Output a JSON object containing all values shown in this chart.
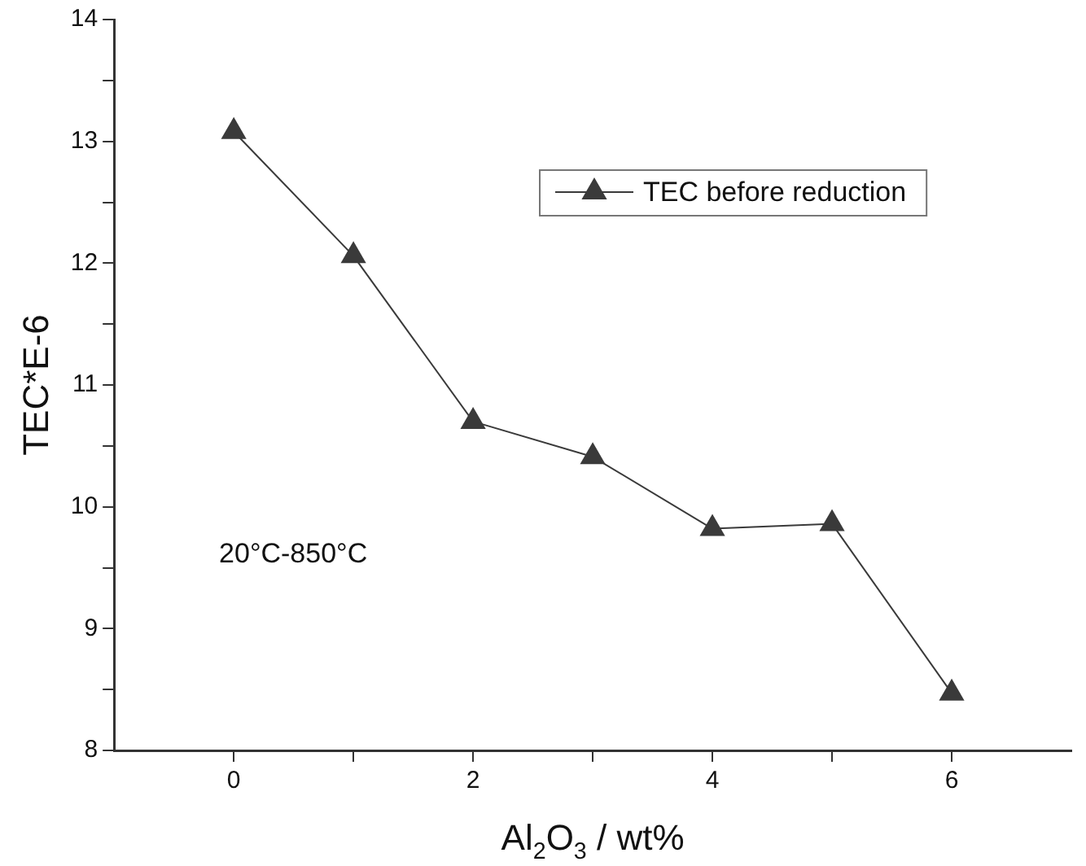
{
  "chart_data": {
    "type": "line",
    "xlabel": "Al$_{2}$O$_{3}$ / wt%",
    "ylabel": "TEC*E-6",
    "x": [
      0,
      1,
      2,
      3,
      4,
      5,
      6
    ],
    "series": [
      {
        "name": "TEC before reduction",
        "color": "#3a3a3a",
        "values": [
          13.08,
          12.06,
          10.7,
          10.41,
          9.82,
          9.86,
          8.47
        ]
      }
    ],
    "xlim": [
      -1,
      7
    ],
    "xticks": [
      0,
      {
        "value": 1,
        "label": null
      },
      2,
      {
        "value": 3,
        "label": null
      },
      4,
      {
        "value": 5,
        "label": null
      },
      6
    ],
    "ylim": [
      8,
      14
    ],
    "yticks": [
      8,
      {
        "value": 8.5,
        "label": null
      },
      9,
      {
        "value": 9.5,
        "label": null
      },
      10,
      {
        "value": 10.5,
        "label": null
      },
      11,
      {
        "value": 11.5,
        "label": null
      },
      12,
      {
        "value": 12.5,
        "label": null
      },
      13,
      {
        "value": 13.5,
        "label": null
      },
      14
    ],
    "annotations": [
      "20°C-850°C"
    ],
    "legend": "top right",
    "marker": "triangle",
    "line_style": "solid",
    "grid": false
  }
}
